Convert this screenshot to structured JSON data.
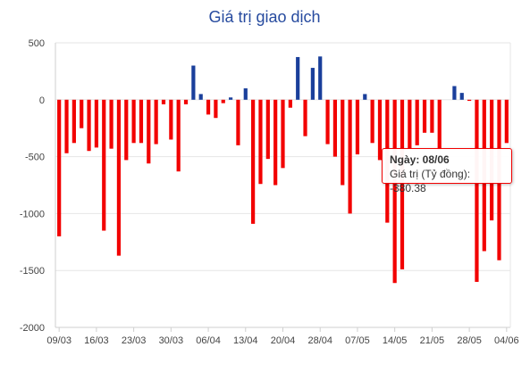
{
  "chart_data": {
    "type": "bar",
    "title": "Giá trị giao dịch",
    "xlabel": "",
    "ylabel": "",
    "ylim": [
      -2000,
      500
    ],
    "yticks": [
      500,
      0,
      -500,
      -1000,
      -1500,
      -2000
    ],
    "grid": true,
    "legend": "none",
    "colors": {
      "positive": "#1a3f9b",
      "negative": "#f20000"
    },
    "x_tick_labels": [
      "09/03",
      "16/03",
      "23/03",
      "30/03",
      "06/04",
      "13/04",
      "20/04",
      "28/04",
      "07/05",
      "14/05",
      "21/05",
      "28/05",
      "04/06"
    ],
    "series": [
      {
        "values": [
          -1200,
          -470,
          -380,
          -250,
          -450,
          -420,
          -1150,
          -430,
          -1370,
          -530,
          -380,
          -380,
          -560,
          -390,
          -40,
          -350,
          -630,
          -40,
          300,
          50,
          -130,
          -160,
          -30,
          20,
          -400,
          100,
          -1090,
          -740,
          -520,
          -750,
          -600,
          -70,
          375,
          -320,
          280,
          380,
          -390,
          -500,
          -750,
          -1000,
          -480,
          50,
          -380,
          -530,
          -1080,
          -1610,
          -1490,
          -430,
          -400,
          -290,
          -290,
          -440,
          0,
          120,
          60,
          -10,
          -1600,
          -1330,
          -1060,
          -1410,
          -380.38
        ]
      }
    ]
  },
  "tooltip": {
    "date_label": "Ngày: 08/06",
    "value_label": "Giá trị (Tỷ đồng): -380.38"
  }
}
